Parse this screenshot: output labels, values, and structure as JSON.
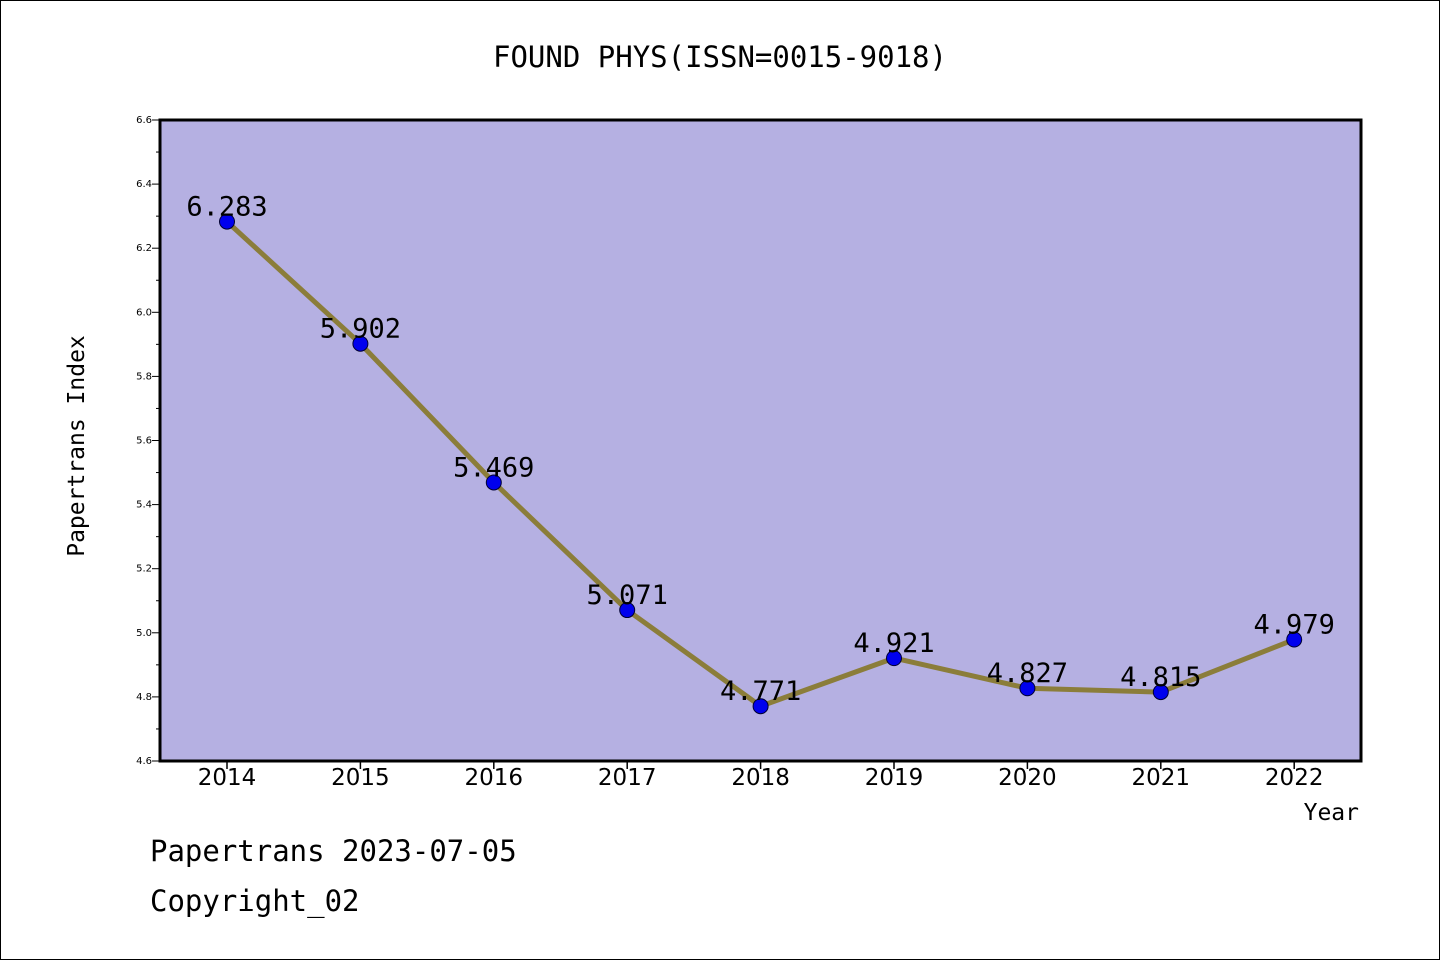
{
  "footer": {
    "line1": "Papertrans 2023-07-05",
    "line2": "Copyright_02"
  },
  "colors": {
    "plot_background": "#b5b0e2",
    "line": "#8b7d3a",
    "marker": "#0000ee",
    "axis": "#000000"
  },
  "chart_data": {
    "type": "line",
    "title": "FOUND PHYS(ISSN=0015-9018)",
    "xlabel": "Year",
    "ylabel": "Papertrans Index",
    "categories": [
      "2014",
      "2015",
      "2016",
      "2017",
      "2018",
      "2019",
      "2020",
      "2021",
      "2022"
    ],
    "series": [
      {
        "values": [
          6.283,
          5.902,
          5.469,
          5.071,
          4.771,
          4.921,
          4.827,
          4.815,
          4.979
        ]
      }
    ],
    "data_labels": [
      "6.283",
      "5.902",
      "5.469",
      "5.071",
      "4.771",
      "4.921",
      "4.827",
      "4.815",
      "4.979"
    ],
    "ylim": [
      4.6,
      6.6
    ],
    "yticks": [
      "4.6",
      "4.8",
      "5.0",
      "5.2",
      "5.4",
      "5.6",
      "5.8",
      "6.0",
      "6.2",
      "6.4",
      "6.6"
    ],
    "grid": false,
    "legend": "none"
  }
}
